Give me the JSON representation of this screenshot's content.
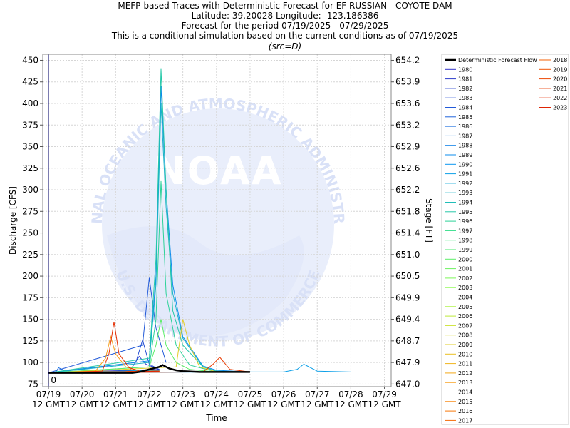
{
  "chart_data": {
    "type": "line",
    "title_lines": [
      "MEFP-based Traces with Deterministic Forecast for EF RUSSIAN - COYOTE DAM",
      "Latitude: 39.20028 Longitude: -123.186386",
      "Forecast for the period 07/19/2025 - 07/29/2025",
      "This is a conditional simulation based on the current conditions as of 07/19/2025"
    ],
    "subtitle": "(src=D)",
    "xlabel": "Time",
    "ylabel": "Discharge [CFS]",
    "y2label": "Stage [FT]",
    "t0_label": "T0",
    "x_unit": "days from 07/19 12 GMT",
    "xlim": [
      -0.17,
      10.2
    ],
    "ylim": [
      72,
      457
    ],
    "y_ticks": [
      75,
      100,
      125,
      150,
      175,
      200,
      225,
      250,
      275,
      300,
      325,
      350,
      375,
      400,
      425,
      450
    ],
    "y2_tick_labels": [
      "647.0",
      "647.9",
      "648.7",
      "649.4",
      "649.9",
      "650.5",
      "651.0",
      "651.4",
      "651.8",
      "652.2",
      "652.6",
      "652.9",
      "653.2",
      "653.6",
      "653.9",
      "654.2"
    ],
    "x_ticks": [
      {
        "x": 0,
        "date": "07/19",
        "time": "12 GMT"
      },
      {
        "x": 1,
        "date": "07/20",
        "time": "12 GMT"
      },
      {
        "x": 2,
        "date": "07/21",
        "time": "12 GMT"
      },
      {
        "x": 3,
        "date": "07/22",
        "time": "12 GMT"
      },
      {
        "x": 4,
        "date": "07/23",
        "time": "12 GMT"
      },
      {
        "x": 5,
        "date": "07/24",
        "time": "12 GMT"
      },
      {
        "x": 6,
        "date": "07/25",
        "time": "12 GMT"
      },
      {
        "x": 7,
        "date": "07/26",
        "time": "12 GMT"
      },
      {
        "x": 8,
        "date": "07/27",
        "time": "12 GMT"
      },
      {
        "x": 9,
        "date": "07/28",
        "time": "12 GMT"
      },
      {
        "x": 10,
        "date": "07/29",
        "time": "12 GMT"
      }
    ],
    "grid": true,
    "legend_position": "right",
    "watermark_text": {
      "center": "NOAA",
      "top_arc": "NATIONAL OCEANIC AND ATMOSPHERIC ADMINISTRATION",
      "bottom_arc": "U.S. DEPARTMENT OF COMMERCE"
    },
    "deterministic": {
      "name": "Deterministic Forecast Flow",
      "color": "#000000",
      "x": [
        0,
        0.5,
        1.0,
        1.5,
        2.0,
        2.5,
        2.7,
        2.9,
        3.1,
        3.2,
        3.3,
        3.4,
        3.5,
        3.6,
        3.8,
        4.0,
        4.5,
        5.0,
        5.5,
        6.0
      ],
      "y": [
        88,
        88,
        88,
        88,
        88,
        88,
        89,
        91,
        93,
        94,
        95,
        97,
        95,
        93,
        91,
        90,
        89,
        89,
        89,
        89
      ]
    },
    "series": [
      {
        "name": "1980",
        "color": "#3232c8",
        "x": [
          0,
          3.3
        ],
        "y": [
          88,
          92
        ]
      },
      {
        "name": "1981",
        "color": "#2e3ccc",
        "x": [
          0,
          2.4,
          2.7,
          2.9,
          3.3
        ],
        "y": [
          88,
          89,
          107,
          98,
          92
        ]
      },
      {
        "name": "1982",
        "color": "#2a46d0",
        "x": [
          0,
          3.3
        ],
        "y": [
          88,
          90
        ]
      },
      {
        "name": "1983",
        "color": "#2650d4",
        "x": [
          0,
          2.6,
          2.8,
          3.0,
          3.3
        ],
        "y": [
          88,
          100,
          126,
          98,
          92
        ]
      },
      {
        "name": "1984",
        "color": "#225ad8",
        "x": [
          0,
          2.8,
          3.0,
          3.2,
          3.5
        ],
        "y": [
          88,
          120,
          198,
          140,
          100
        ]
      },
      {
        "name": "1985",
        "color": "#1e64dc",
        "x": [
          0,
          3.3
        ],
        "y": [
          88,
          91
        ]
      },
      {
        "name": "1986",
        "color": "#1a6ee0",
        "x": [
          0,
          0.2,
          0.3,
          0.45,
          1.0,
          2.0
        ],
        "y": [
          88,
          88,
          94,
          91,
          88,
          88
        ]
      },
      {
        "name": "1987",
        "color": "#1678e4",
        "x": [
          0,
          3.3
        ],
        "y": [
          88,
          90
        ]
      },
      {
        "name": "1988",
        "color": "#1282e8",
        "x": [
          0,
          3.3
        ],
        "y": [
          88,
          90
        ]
      },
      {
        "name": "1989",
        "color": "#0e8cec",
        "x": [
          0,
          3.0,
          3.2,
          3.35,
          3.5,
          3.7,
          4.0,
          4.6,
          5.0,
          6.0
        ],
        "y": [
          88,
          102,
          200,
          420,
          300,
          190,
          130,
          96,
          91,
          89
        ]
      },
      {
        "name": "1990",
        "color": "#0a96f0",
        "x": [
          0,
          3.3
        ],
        "y": [
          88,
          91
        ]
      },
      {
        "name": "1991",
        "color": "#0ea0e8",
        "x": [
          0,
          6.0,
          7.0,
          7.4,
          7.6,
          8.0,
          9.0
        ],
        "y": [
          88,
          89,
          89,
          92,
          98,
          90,
          89
        ]
      },
      {
        "name": "1992",
        "color": "#14aad8",
        "x": [
          0,
          3.3
        ],
        "y": [
          88,
          91
        ]
      },
      {
        "name": "1993",
        "color": "#1ab4c8",
        "x": [
          0,
          3.0,
          3.2,
          3.35,
          3.5,
          3.7,
          4.0,
          4.6,
          5.0,
          6.0
        ],
        "y": [
          88,
          100,
          190,
          400,
          280,
          180,
          128,
          95,
          90,
          89
        ]
      },
      {
        "name": "1994",
        "color": "#20beb8",
        "x": [
          0,
          3.3
        ],
        "y": [
          88,
          90
        ]
      },
      {
        "name": "1995",
        "color": "#26c8a8",
        "x": [
          0,
          3.0,
          3.2,
          3.35,
          3.5,
          3.7,
          4.0,
          4.6,
          5.0,
          6.0
        ],
        "y": [
          88,
          105,
          220,
          440,
          300,
          160,
          120,
          95,
          90,
          89
        ]
      },
      {
        "name": "1996",
        "color": "#2cd298",
        "x": [
          0,
          3.0,
          3.2,
          3.35,
          3.5,
          3.8,
          4.2,
          5.0
        ],
        "y": [
          88,
          95,
          150,
          310,
          180,
          120,
          97,
          89
        ]
      },
      {
        "name": "1997",
        "color": "#32dc88",
        "x": [
          0,
          3.3
        ],
        "y": [
          88,
          90
        ]
      },
      {
        "name": "1998",
        "color": "#3ce678",
        "x": [
          0,
          3.3
        ],
        "y": [
          88,
          90
        ]
      },
      {
        "name": "1999",
        "color": "#4cea70",
        "x": [
          0,
          3.3
        ],
        "y": [
          88,
          90
        ]
      },
      {
        "name": "2000",
        "color": "#5cee68",
        "x": [
          0,
          3.0,
          3.2,
          3.35,
          3.5,
          3.8,
          4.2,
          5.0
        ],
        "y": [
          88,
          95,
          120,
          150,
          120,
          100,
          92,
          89
        ]
      },
      {
        "name": "2001",
        "color": "#6cf260",
        "x": [
          0,
          3.3
        ],
        "y": [
          88,
          90
        ]
      },
      {
        "name": "2002",
        "color": "#7cf658",
        "x": [
          0,
          3.3
        ],
        "y": [
          88,
          90
        ]
      },
      {
        "name": "2003",
        "color": "#8cfa50",
        "x": [
          0,
          3.3
        ],
        "y": [
          88,
          90
        ]
      },
      {
        "name": "2004",
        "color": "#9cfa48",
        "x": [
          0,
          3.3
        ],
        "y": [
          88,
          90
        ]
      },
      {
        "name": "2005",
        "color": "#acf240",
        "x": [
          0,
          3.3
        ],
        "y": [
          88,
          90
        ]
      },
      {
        "name": "2006",
        "color": "#bcea38",
        "x": [
          0,
          3.3
        ],
        "y": [
          88,
          90
        ]
      },
      {
        "name": "2007",
        "color": "#cce230",
        "x": [
          0,
          3.3
        ],
        "y": [
          88,
          90
        ]
      },
      {
        "name": "2008",
        "color": "#d8d828",
        "x": [
          0,
          3.3
        ],
        "y": [
          88,
          90
        ]
      },
      {
        "name": "2009",
        "color": "#e2cc24",
        "x": [
          0,
          3.8,
          4.0,
          4.2,
          4.5,
          5.0
        ],
        "y": [
          88,
          95,
          150,
          120,
          95,
          89
        ]
      },
      {
        "name": "2010",
        "color": "#eac020",
        "x": [
          0,
          3.3
        ],
        "y": [
          88,
          90
        ]
      },
      {
        "name": "2011",
        "color": "#f0b41c",
        "x": [
          0,
          3.3
        ],
        "y": [
          88,
          90
        ]
      },
      {
        "name": "2012",
        "color": "#f4a818",
        "x": [
          0,
          3.3
        ],
        "y": [
          88,
          90
        ]
      },
      {
        "name": "2013",
        "color": "#f89c14",
        "x": [
          0,
          1.4,
          1.7,
          1.85,
          2.0,
          2.3,
          2.8
        ],
        "y": [
          88,
          90,
          105,
          130,
          110,
          95,
          89
        ]
      },
      {
        "name": "2014",
        "color": "#f89010",
        "x": [
          0,
          3.3
        ],
        "y": [
          88,
          90
        ]
      },
      {
        "name": "2015",
        "color": "#f8840c",
        "x": [
          0,
          3.3
        ],
        "y": [
          88,
          90
        ]
      },
      {
        "name": "2016",
        "color": "#f8780a",
        "x": [
          0,
          3.3
        ],
        "y": [
          88,
          90
        ]
      },
      {
        "name": "2017",
        "color": "#f66c08",
        "x": [
          0,
          3.3
        ],
        "y": [
          88,
          90
        ]
      },
      {
        "name": "2018",
        "color": "#f46006",
        "x": [
          0,
          3.3
        ],
        "y": [
          88,
          90
        ]
      },
      {
        "name": "2019",
        "color": "#f05404",
        "x": [
          0,
          3.3
        ],
        "y": [
          88,
          90
        ]
      },
      {
        "name": "2020",
        "color": "#ec4804",
        "x": [
          0,
          3.3
        ],
        "y": [
          88,
          90
        ]
      },
      {
        "name": "2021",
        "color": "#e83c04",
        "x": [
          0,
          4.6,
          4.9,
          5.1,
          5.4,
          6.0
        ],
        "y": [
          88,
          89,
          98,
          106,
          92,
          89
        ]
      },
      {
        "name": "2022",
        "color": "#e43004",
        "x": [
          0,
          1.6,
          1.8,
          1.95,
          2.1,
          2.4,
          2.8
        ],
        "y": [
          88,
          90,
          110,
          147,
          110,
          94,
          89
        ]
      },
      {
        "name": "2023",
        "color": "#de2404",
        "x": [
          0,
          3.3
        ],
        "y": [
          88,
          90
        ]
      }
    ]
  }
}
